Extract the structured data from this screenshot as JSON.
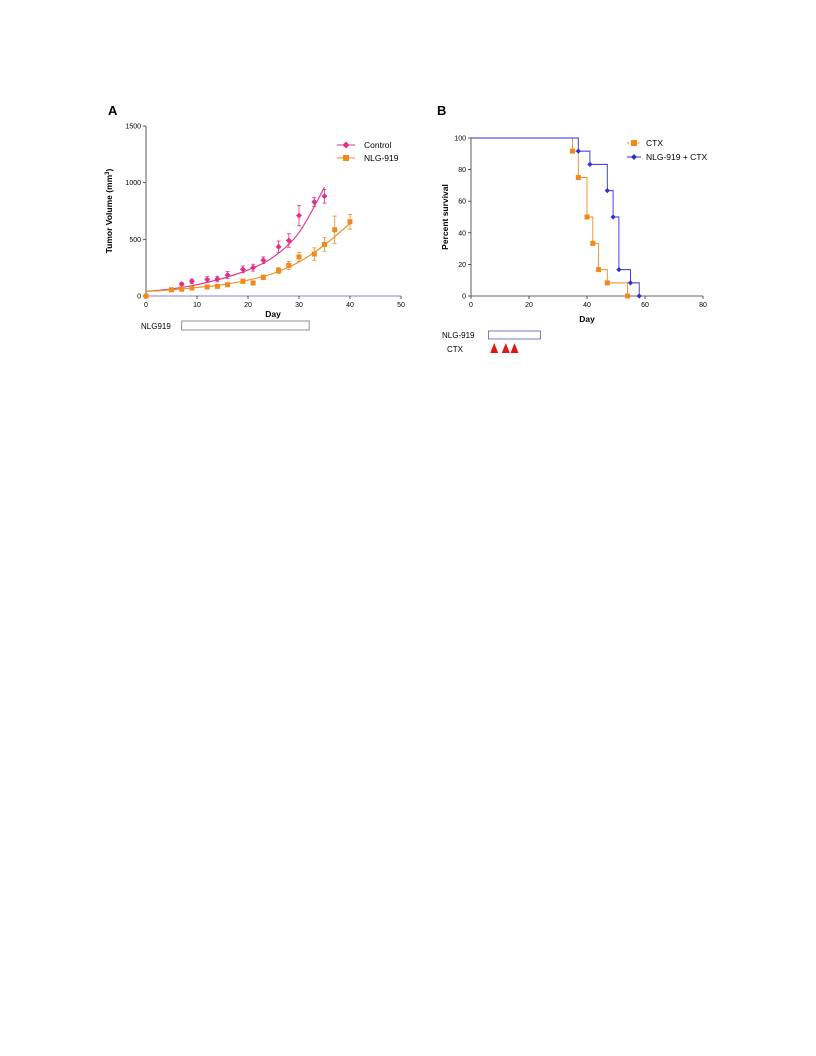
{
  "chart_data": [
    {
      "panel": "A",
      "type": "scatter",
      "xlabel": "Day",
      "ylabel": "Tumor Volume (mm",
      "ylabel_sup": "3",
      "ylabel_end": ")",
      "xlim": [
        0,
        50
      ],
      "ylim": [
        0,
        1500
      ],
      "xticks": [
        "0",
        "10",
        "20",
        "30",
        "40",
        "50"
      ],
      "yticks": [
        "0",
        "500",
        "1000",
        "1500"
      ],
      "legend_position": "top-right",
      "series": [
        {
          "name": "Control",
          "color": "#e0308a",
          "marker": "diamond",
          "x": [
            7,
            9,
            12,
            14,
            16,
            19,
            21,
            23,
            26,
            28,
            30,
            33,
            35
          ],
          "y": [
            105,
            130,
            145,
            150,
            185,
            235,
            250,
            315,
            435,
            490,
            710,
            830,
            880
          ],
          "err": [
            15,
            20,
            25,
            25,
            30,
            30,
            30,
            30,
            50,
            60,
            90,
            40,
            60
          ],
          "fit": [
            [
              0,
              40
            ],
            [
              5,
              62
            ],
            [
              10,
              100
            ],
            [
              15,
              155
            ],
            [
              20,
              230
            ],
            [
              25,
              345
            ],
            [
              30,
              560
            ],
            [
              35,
              960
            ]
          ]
        },
        {
          "name": "NLG-919",
          "color": "#f08a1c",
          "marker": "square",
          "x": [
            0,
            5,
            7,
            9,
            12,
            14,
            16,
            19,
            21,
            23,
            26,
            28,
            30,
            33,
            35,
            37,
            40
          ],
          "y": [
            0,
            55,
            60,
            70,
            80,
            85,
            100,
            130,
            115,
            165,
            225,
            270,
            345,
            370,
            455,
            585,
            655
          ],
          "err": [
            0,
            10,
            10,
            10,
            12,
            12,
            15,
            18,
            15,
            20,
            25,
            35,
            40,
            55,
            60,
            120,
            65
          ],
          "fit": [
            [
              0,
              40
            ],
            [
              5,
              55
            ],
            [
              10,
              75
            ],
            [
              15,
              100
            ],
            [
              20,
              140
            ],
            [
              25,
              200
            ],
            [
              30,
              300
            ],
            [
              35,
              450
            ],
            [
              40,
              640
            ]
          ]
        }
      ],
      "treatment": {
        "label": "NLG919",
        "start_day": 7,
        "end_day": 32
      }
    },
    {
      "panel": "B",
      "type": "line",
      "subtype": "kaplan-meier",
      "xlabel": "Day",
      "ylabel": "Percent survival",
      "xlim": [
        0,
        80
      ],
      "ylim": [
        0,
        100
      ],
      "xticks": [
        "0",
        "20",
        "40",
        "60",
        "80"
      ],
      "yticks": [
        "0",
        "20",
        "40",
        "60",
        "80",
        "100"
      ],
      "legend_position": "top-right",
      "series": [
        {
          "name": "CTX",
          "color": "#f08a1c",
          "marker": "square",
          "steps": [
            [
              0,
              100
            ],
            [
              35,
              91.7
            ],
            [
              37,
              75
            ],
            [
              40,
              50
            ],
            [
              42,
              33.3
            ],
            [
              44,
              16.7
            ],
            [
              47,
              8.3
            ],
            [
              54,
              0
            ]
          ]
        },
        {
          "name": "NLG-919 + CTX",
          "color": "#2f2fd4",
          "marker": "diamond",
          "steps": [
            [
              0,
              100
            ],
            [
              37,
              91.7
            ],
            [
              41,
              83.3
            ],
            [
              47,
              66.7
            ],
            [
              49,
              50
            ],
            [
              51,
              16.7
            ],
            [
              55,
              8.3
            ],
            [
              58,
              0
            ]
          ]
        }
      ],
      "treatment": {
        "label": "NLG-919",
        "start_day": 6,
        "end_day": 24
      },
      "ctx_doses": {
        "label": "CTX",
        "days": [
          8,
          12,
          15
        ],
        "color": "#e01818"
      }
    }
  ]
}
